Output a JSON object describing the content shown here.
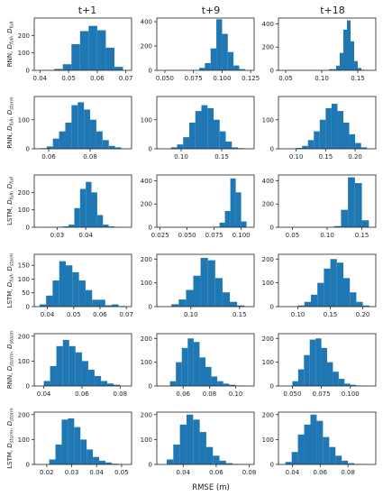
{
  "figure": {
    "column_titles": [
      "t+1",
      "t+9",
      "t+18"
    ],
    "xlabel": "RMSE (m)",
    "bar_color": "#1f77b4"
  },
  "chart_data": [
    {
      "type": "bar",
      "row": 0,
      "col": 0,
      "ylabel": {
        "m": "RNN, ",
        "s": [
          [
            "D",
            "full"
          ],
          [
            "D",
            "full"
          ]
        ]
      },
      "xlim": [
        0.038,
        0.072
      ],
      "ylim": [
        0,
        300
      ],
      "xticks": [
        0.04,
        0.05,
        0.06,
        0.07
      ],
      "xtick_labels": [
        "0.04",
        "0.05",
        "0.06",
        "0.07"
      ],
      "yticks": [
        0,
        100,
        200
      ],
      "ytick_labels": [
        "0",
        "100",
        "200"
      ],
      "bin_edges": [
        0.042,
        0.045,
        0.048,
        0.051,
        0.054,
        0.057,
        0.06,
        0.063,
        0.066,
        0.069
      ],
      "counts": [
        1,
        8,
        35,
        150,
        225,
        255,
        230,
        130,
        20
      ]
    },
    {
      "type": "bar",
      "row": 0,
      "col": 1,
      "ylabel": null,
      "xlim": [
        0.043,
        0.128
      ],
      "ylim": [
        0,
        430
      ],
      "xticks": [
        0.05,
        0.075,
        0.1,
        0.125
      ],
      "xtick_labels": [
        "0.050",
        "0.075",
        "0.100",
        "0.125"
      ],
      "yticks": [
        0,
        200,
        400
      ],
      "ytick_labels": [
        "0",
        "200",
        "400"
      ],
      "bin_edges": [
        0.05,
        0.0575,
        0.065,
        0.0725,
        0.08,
        0.085,
        0.09,
        0.095,
        0.1,
        0.105,
        0.11,
        0.115,
        0.12
      ],
      "counts": [
        1,
        1,
        1,
        1,
        20,
        60,
        180,
        420,
        300,
        150,
        40,
        10
      ]
    },
    {
      "type": "bar",
      "row": 0,
      "col": 2,
      "ylabel": null,
      "xlim": [
        0.04,
        0.175
      ],
      "ylim": [
        0,
        450
      ],
      "xticks": [
        0.05,
        0.1,
        0.15
      ],
      "xtick_labels": [
        "0.05",
        "0.10",
        "0.15"
      ],
      "yticks": [
        0,
        200,
        400
      ],
      "ytick_labels": [
        "0",
        "200",
        "400"
      ],
      "bin_edges": [
        0.05,
        0.06,
        0.07,
        0.08,
        0.09,
        0.1,
        0.11,
        0.12,
        0.125,
        0.13,
        0.135,
        0.14,
        0.145,
        0.15,
        0.155,
        0.16
      ],
      "counts": [
        1,
        1,
        1,
        1,
        1,
        1,
        10,
        40,
        150,
        350,
        430,
        250,
        80,
        20,
        5
      ]
    },
    {
      "type": "bar",
      "row": 1,
      "col": 0,
      "ylabel": {
        "m": "RNN, ",
        "s": [
          [
            "D",
            "full"
          ],
          [
            "D",
            "storm"
          ]
        ]
      },
      "xlim": [
        0.053,
        0.1
      ],
      "ylim": [
        0,
        180
      ],
      "xticks": [
        0.06,
        0.08
      ],
      "xtick_labels": [
        "0.06",
        "0.08"
      ],
      "yticks": [
        0,
        100
      ],
      "ytick_labels": [
        "0",
        "100"
      ],
      "bin_edges": [
        0.056,
        0.059,
        0.062,
        0.065,
        0.068,
        0.071,
        0.074,
        0.077,
        0.08,
        0.083,
        0.086,
        0.089,
        0.092,
        0.095
      ],
      "counts": [
        2,
        8,
        35,
        60,
        90,
        150,
        160,
        135,
        100,
        60,
        30,
        10,
        5
      ]
    },
    {
      "type": "bar",
      "row": 1,
      "col": 1,
      "ylabel": null,
      "xlim": [
        0.07,
        0.19
      ],
      "ylim": [
        0,
        180
      ],
      "xticks": [
        0.1,
        0.15
      ],
      "xtick_labels": [
        "0.10",
        "0.15"
      ],
      "yticks": [
        0,
        100
      ],
      "ytick_labels": [
        "0",
        "100"
      ],
      "bin_edges": [
        0.08,
        0.0875,
        0.095,
        0.1025,
        0.11,
        0.1175,
        0.125,
        0.1325,
        0.14,
        0.1475,
        0.155,
        0.1625,
        0.17,
        0.1775
      ],
      "counts": [
        1,
        5,
        15,
        40,
        90,
        130,
        150,
        140,
        100,
        60,
        25,
        5,
        2
      ]
    },
    {
      "type": "bar",
      "row": 1,
      "col": 2,
      "ylabel": null,
      "xlim": [
        0.07,
        0.235
      ],
      "ylim": [
        0,
        180
      ],
      "xticks": [
        0.1,
        0.15,
        0.2
      ],
      "xtick_labels": [
        "0.10",
        "0.15",
        "0.20"
      ],
      "yticks": [
        0,
        100
      ],
      "ytick_labels": [
        "0",
        "100"
      ],
      "bin_edges": [
        0.09,
        0.1,
        0.11,
        0.12,
        0.13,
        0.14,
        0.15,
        0.16,
        0.17,
        0.18,
        0.19,
        0.2,
        0.21,
        0.22
      ],
      "counts": [
        1,
        3,
        10,
        30,
        60,
        100,
        140,
        155,
        130,
        90,
        50,
        20,
        5
      ]
    },
    {
      "type": "bar",
      "row": 2,
      "col": 0,
      "ylabel": {
        "m": "LSTM, ",
        "s": [
          [
            "D",
            "full"
          ],
          [
            "D",
            "full"
          ]
        ]
      },
      "xlim": [
        0.022,
        0.056
      ],
      "ylim": [
        0,
        300
      ],
      "xticks": [
        0.03,
        0.04
      ],
      "xtick_labels": [
        "0.03",
        "0.04"
      ],
      "yticks": [
        0,
        100,
        200
      ],
      "ytick_labels": [
        "0",
        "100",
        "200"
      ],
      "bin_edges": [
        0.026,
        0.028,
        0.03,
        0.032,
        0.034,
        0.036,
        0.038,
        0.04,
        0.042,
        0.044,
        0.046,
        0.048,
        0.05,
        0.052
      ],
      "counts": [
        1,
        1,
        2,
        5,
        15,
        110,
        220,
        260,
        200,
        70,
        15,
        5,
        1
      ]
    },
    {
      "type": "bar",
      "row": 2,
      "col": 1,
      "ylabel": null,
      "xlim": [
        0.022,
        0.112
      ],
      "ylim": [
        0,
        450
      ],
      "xticks": [
        0.025,
        0.05,
        0.075,
        0.1
      ],
      "xtick_labels": [
        "0.025",
        "0.050",
        "0.075",
        "0.100"
      ],
      "yticks": [
        0,
        200,
        400
      ],
      "ytick_labels": [
        "0",
        "200",
        "400"
      ],
      "bin_edges": [
        0.03,
        0.0375,
        0.045,
        0.0525,
        0.06,
        0.0675,
        0.075,
        0.08,
        0.085,
        0.09,
        0.095,
        0.1,
        0.105
      ],
      "counts": [
        1,
        1,
        1,
        1,
        1,
        1,
        5,
        40,
        140,
        420,
        300,
        50
      ]
    },
    {
      "type": "bar",
      "row": 2,
      "col": 2,
      "ylabel": null,
      "xlim": [
        0.03,
        0.17
      ],
      "ylim": [
        0,
        450
      ],
      "xticks": [
        0.05,
        0.1,
        0.15
      ],
      "xtick_labels": [
        "0.05",
        "0.10",
        "0.15"
      ],
      "yticks": [
        0,
        200,
        400
      ],
      "ytick_labels": [
        "0",
        "200",
        "400"
      ],
      "bin_edges": [
        0.04,
        0.05,
        0.06,
        0.07,
        0.08,
        0.09,
        0.1,
        0.11,
        0.12,
        0.13,
        0.14,
        0.15,
        0.16
      ],
      "counts": [
        1,
        1,
        1,
        1,
        1,
        1,
        1,
        10,
        150,
        430,
        380,
        60
      ]
    },
    {
      "type": "bar",
      "row": 3,
      "col": 0,
      "ylabel": {
        "m": "LSTM, ",
        "s": [
          [
            "D",
            "full"
          ],
          [
            "D",
            "storm"
          ]
        ]
      },
      "xlim": [
        0.035,
        0.072
      ],
      "ylim": [
        0,
        190
      ],
      "xticks": [
        0.04,
        0.05,
        0.06,
        0.07
      ],
      "xtick_labels": [
        "0.04",
        "0.05",
        "0.06",
        "0.07"
      ],
      "yticks": [
        0,
        50,
        100,
        150
      ],
      "ytick_labels": [
        "0",
        "50",
        "100",
        "150"
      ],
      "bin_edges": [
        0.037,
        0.0395,
        0.042,
        0.0445,
        0.047,
        0.0495,
        0.052,
        0.0545,
        0.057,
        0.0595,
        0.062,
        0.0645,
        0.067,
        0.0695
      ],
      "counts": [
        8,
        40,
        95,
        165,
        150,
        125,
        95,
        60,
        25,
        25,
        5,
        8,
        2
      ]
    },
    {
      "type": "bar",
      "row": 3,
      "col": 1,
      "ylabel": null,
      "xlim": [
        0.065,
        0.165
      ],
      "ylim": [
        0,
        220
      ],
      "xticks": [
        0.1,
        0.15
      ],
      "xtick_labels": [
        "0.10",
        "0.15"
      ],
      "yticks": [
        0,
        100,
        200
      ],
      "ytick_labels": [
        "0",
        "100",
        "200"
      ],
      "bin_edges": [
        0.08,
        0.0875,
        0.095,
        0.1025,
        0.11,
        0.1175,
        0.125,
        0.1325,
        0.14,
        0.1475,
        0.155
      ],
      "counts": [
        10,
        30,
        70,
        130,
        205,
        195,
        120,
        60,
        20,
        5
      ]
    },
    {
      "type": "bar",
      "row": 3,
      "col": 2,
      "ylabel": null,
      "xlim": [
        0.07,
        0.22
      ],
      "ylim": [
        0,
        220
      ],
      "xticks": [
        0.1,
        0.15,
        0.2
      ],
      "xtick_labels": [
        "0.10",
        "0.15",
        "0.20"
      ],
      "yticks": [
        0,
        100,
        200
      ],
      "ytick_labels": [
        "0",
        "100",
        "200"
      ],
      "bin_edges": [
        0.1,
        0.11,
        0.12,
        0.13,
        0.14,
        0.15,
        0.16,
        0.17,
        0.18,
        0.19,
        0.2,
        0.21
      ],
      "counts": [
        5,
        20,
        50,
        100,
        160,
        200,
        185,
        120,
        60,
        20,
        5
      ]
    },
    {
      "type": "bar",
      "row": 4,
      "col": 0,
      "ylabel": {
        "m": "RNN, ",
        "s": [
          [
            "D",
            "storm"
          ],
          [
            "D",
            "storm"
          ]
        ]
      },
      "xlim": [
        0.035,
        0.086
      ],
      "ylim": [
        0,
        210
      ],
      "xticks": [
        0.04,
        0.06,
        0.08
      ],
      "xtick_labels": [
        "0.04",
        "0.06",
        "0.08"
      ],
      "yticks": [
        0,
        100,
        200
      ],
      "ytick_labels": [
        "0",
        "100",
        "200"
      ],
      "bin_edges": [
        0.04,
        0.0433,
        0.0466,
        0.05,
        0.0533,
        0.0566,
        0.06,
        0.0633,
        0.0666,
        0.07,
        0.0733,
        0.0766,
        0.08
      ],
      "counts": [
        20,
        80,
        160,
        185,
        160,
        135,
        100,
        65,
        40,
        20,
        10,
        5
      ]
    },
    {
      "type": "bar",
      "row": 4,
      "col": 1,
      "ylabel": null,
      "xlim": [
        0.04,
        0.114
      ],
      "ylim": [
        0,
        220
      ],
      "xticks": [
        0.06,
        0.08,
        0.1
      ],
      "xtick_labels": [
        "0.06",
        "0.08",
        "0.10"
      ],
      "yticks": [
        0,
        100,
        200
      ],
      "ytick_labels": [
        "0",
        "100",
        "200"
      ],
      "bin_edges": [
        0.05,
        0.0545,
        0.059,
        0.0635,
        0.068,
        0.0725,
        0.077,
        0.0815,
        0.086,
        0.0905,
        0.095,
        0.0995,
        0.104,
        0.1085
      ],
      "counts": [
        20,
        100,
        160,
        200,
        185,
        120,
        80,
        40,
        20,
        10,
        5,
        2,
        1
      ]
    },
    {
      "type": "bar",
      "row": 4,
      "col": 2,
      "ylabel": null,
      "xlim": [
        0.038,
        0.122
      ],
      "ylim": [
        0,
        220
      ],
      "xticks": [
        0.05,
        0.075,
        0.1
      ],
      "xtick_labels": [
        "0.050",
        "0.075",
        "0.100"
      ],
      "yticks": [
        0,
        100,
        200
      ],
      "ytick_labels": [
        "0",
        "100",
        "200"
      ],
      "bin_edges": [
        0.05,
        0.055,
        0.06,
        0.065,
        0.07,
        0.075,
        0.08,
        0.085,
        0.09,
        0.095,
        0.1,
        0.105,
        0.11,
        0.115
      ],
      "counts": [
        20,
        70,
        130,
        195,
        200,
        160,
        100,
        60,
        30,
        10,
        5,
        2,
        1
      ]
    },
    {
      "type": "bar",
      "row": 5,
      "col": 0,
      "ylabel": {
        "m": "LSTM, ",
        "s": [
          [
            "D",
            "storm"
          ],
          [
            "D",
            "storm"
          ]
        ]
      },
      "xlim": [
        0.015,
        0.054
      ],
      "ylim": [
        0,
        210
      ],
      "xticks": [
        0.02,
        0.03,
        0.04,
        0.05
      ],
      "xtick_labels": [
        "0.02",
        "0.03",
        "0.04",
        "0.05"
      ],
      "yticks": [
        0,
        100,
        200
      ],
      "ytick_labels": [
        "0",
        "100",
        "200"
      ],
      "bin_edges": [
        0.021,
        0.0235,
        0.026,
        0.0285,
        0.031,
        0.0335,
        0.036,
        0.0385,
        0.041,
        0.0435,
        0.046,
        0.0485,
        0.051
      ],
      "counts": [
        20,
        80,
        180,
        185,
        150,
        100,
        60,
        30,
        15,
        8,
        3,
        1
      ]
    },
    {
      "type": "bar",
      "row": 5,
      "col": 1,
      "ylabel": null,
      "xlim": [
        0.024,
        0.083
      ],
      "ylim": [
        0,
        210
      ],
      "xticks": [
        0.04,
        0.06,
        0.08
      ],
      "xtick_labels": [
        "0.04",
        "0.06",
        "0.08"
      ],
      "yticks": [
        0,
        100,
        200
      ],
      "ytick_labels": [
        "0",
        "100",
        "200"
      ],
      "bin_edges": [
        0.03,
        0.034,
        0.038,
        0.042,
        0.046,
        0.05,
        0.054,
        0.058,
        0.062,
        0.066,
        0.07,
        0.074,
        0.078
      ],
      "counts": [
        20,
        80,
        160,
        200,
        180,
        130,
        70,
        35,
        15,
        5,
        2,
        1
      ]
    },
    {
      "type": "bar",
      "row": 5,
      "col": 2,
      "ylabel": null,
      "xlim": [
        0.03,
        0.1
      ],
      "ylim": [
        0,
        210
      ],
      "xticks": [
        0.04,
        0.06,
        0.08
      ],
      "xtick_labels": [
        "0.04",
        "0.06",
        "0.08"
      ],
      "yticks": [
        0,
        100,
        200
      ],
      "ytick_labels": [
        "0",
        "100",
        "200"
      ],
      "bin_edges": [
        0.035,
        0.0395,
        0.044,
        0.0485,
        0.053,
        0.0575,
        0.062,
        0.0665,
        0.071,
        0.0755,
        0.08,
        0.0845,
        0.089,
        0.0935
      ],
      "counts": [
        10,
        50,
        120,
        160,
        200,
        175,
        110,
        70,
        35,
        15,
        5,
        2,
        1
      ]
    }
  ]
}
